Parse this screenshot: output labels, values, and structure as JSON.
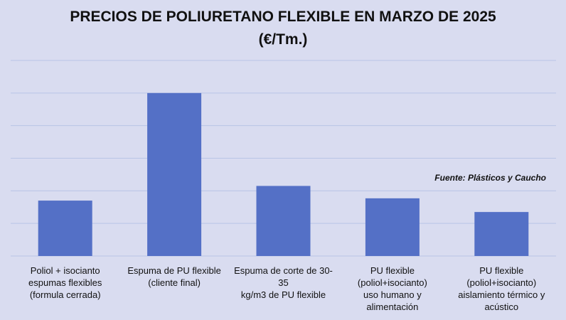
{
  "chart_data": {
    "type": "bar",
    "title": "PRECIOS DE POLIURETANO FLEXIBLE EN MARZO DE 2025",
    "subtitle": "(€/Tm.)",
    "annotation": "Fuente: Plásticos y Caucho",
    "categories": [
      "Poliol + isocianto\nespumas flexibles\n(formula cerrada)",
      "Espuma de PU flexible\n(cliente final)",
      "Espuma de corte de 30-35\nkg/m3 de PU flexible",
      "PU flexible\n(poliol+isocianto)\nuso humano y\nalimentación",
      "PU flexible\n(poliol+isocianto)\naislamiento térmico y\nacústico"
    ],
    "values": [
      1.7,
      5.0,
      2.15,
      1.77,
      1.35
    ],
    "ylim": [
      0,
      6
    ],
    "grid": true,
    "bar_color": "#5470c6",
    "grid_color": "#b9c4e6",
    "background": "#d9dcf0"
  }
}
